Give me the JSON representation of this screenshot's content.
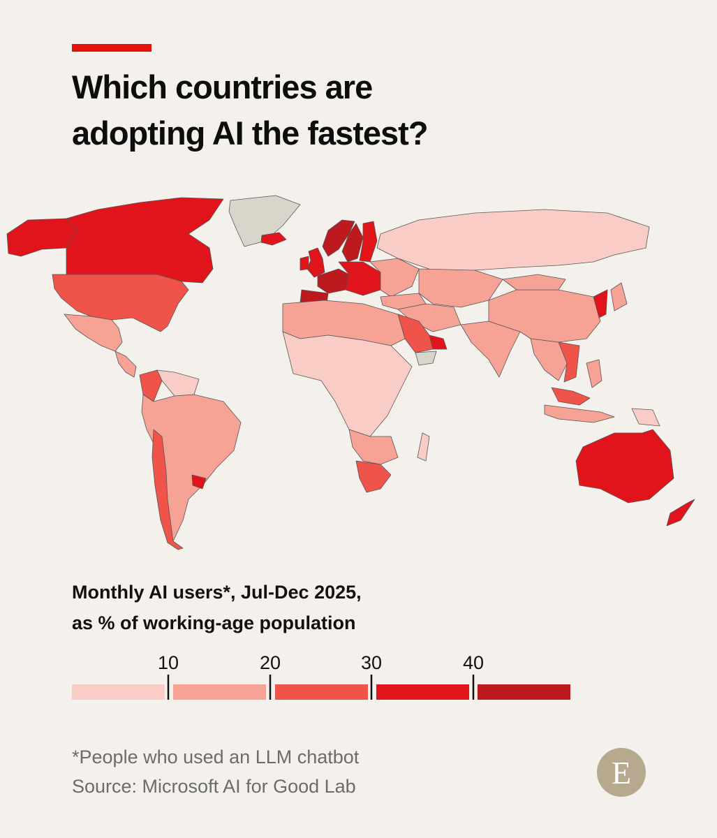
{
  "header": {
    "title_line1": "Which countries are",
    "title_line2": "adopting AI the fastest?"
  },
  "legend": {
    "title_line1": "Monthly AI users*,  Jul-Dec 2025,",
    "title_line2": "as % of working-age population",
    "ticks": [
      "10",
      "20",
      "30",
      "40"
    ],
    "colors": [
      "#f9cdc5",
      "#f6a396",
      "#ef5349",
      "#e0141a",
      "#bc1a1f"
    ]
  },
  "footer": {
    "note": "*People who used an LLM chatbot",
    "source": "Source: Microsoft AI for Good Lab",
    "logo_letter": "E"
  },
  "map": {
    "no_data_color": "#d8d5cb",
    "regions": [
      {
        "name": "Alaska",
        "bin": 3
      },
      {
        "name": "Canada",
        "bin": 3
      },
      {
        "name": "Greenland",
        "bin": -1
      },
      {
        "name": "United States",
        "bin": 2
      },
      {
        "name": "Mexico",
        "bin": 1
      },
      {
        "name": "Central America",
        "bin": 1
      },
      {
        "name": "Colombia",
        "bin": 2
      },
      {
        "name": "Venezuela",
        "bin": 0
      },
      {
        "name": "South America",
        "bin": 1
      },
      {
        "name": "Chile",
        "bin": 2
      },
      {
        "name": "Uruguay",
        "bin": 3
      },
      {
        "name": "Iceland",
        "bin": 3
      },
      {
        "name": "Norway",
        "bin": 4
      },
      {
        "name": "Sweden",
        "bin": 4
      },
      {
        "name": "Finland",
        "bin": 3
      },
      {
        "name": "United Kingdom",
        "bin": 3
      },
      {
        "name": "Ireland",
        "bin": 3
      },
      {
        "name": "Western Europe",
        "bin": 4
      },
      {
        "name": "Spain",
        "bin": 4
      },
      {
        "name": "Central Europe",
        "bin": 3
      },
      {
        "name": "Eastern Europe",
        "bin": 1
      },
      {
        "name": "Russia",
        "bin": 0
      },
      {
        "name": "Turkey",
        "bin": 1
      },
      {
        "name": "Central Asia",
        "bin": 1
      },
      {
        "name": "Middle East",
        "bin": 1
      },
      {
        "name": "Saudi Arabia",
        "bin": 2
      },
      {
        "name": "UAE",
        "bin": 3
      },
      {
        "name": "Yemen",
        "bin": -1
      },
      {
        "name": "North Africa",
        "bin": 1
      },
      {
        "name": "Sub-Saharan Africa",
        "bin": 0
      },
      {
        "name": "Southern Africa",
        "bin": 1
      },
      {
        "name": "South Africa",
        "bin": 2
      },
      {
        "name": "Madagascar",
        "bin": 0
      },
      {
        "name": "India",
        "bin": 1
      },
      {
        "name": "China",
        "bin": 1
      },
      {
        "name": "Mongolia",
        "bin": 1
      },
      {
        "name": "Korea",
        "bin": 3
      },
      {
        "name": "Japan",
        "bin": 1
      },
      {
        "name": "Southeast Asia",
        "bin": 1
      },
      {
        "name": "Vietnam",
        "bin": 2
      },
      {
        "name": "Malaysia",
        "bin": 2
      },
      {
        "name": "Indonesia",
        "bin": 1
      },
      {
        "name": "Philippines",
        "bin": 1
      },
      {
        "name": "Papua New Guinea",
        "bin": 0
      },
      {
        "name": "Australia",
        "bin": 3
      },
      {
        "name": "New Zealand",
        "bin": 3
      }
    ]
  }
}
